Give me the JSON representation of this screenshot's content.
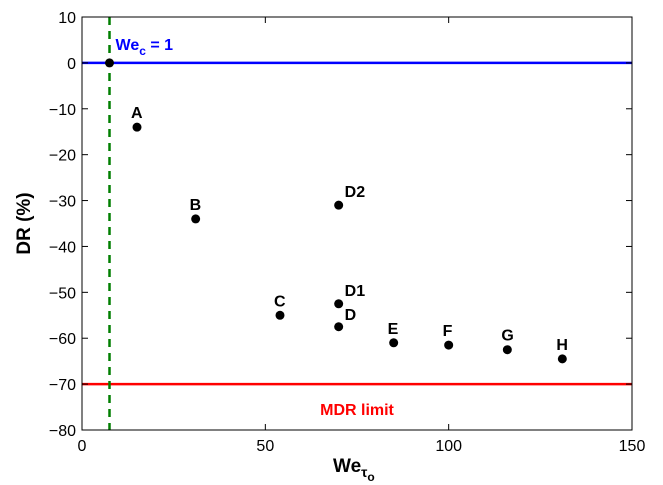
{
  "chart_data": {
    "type": "scatter",
    "title": "",
    "xlabel": {
      "main": "We",
      "sub": "τ",
      "subsub": "o"
    },
    "ylabel": "DR (%)",
    "xlim": [
      0,
      150
    ],
    "ylim": [
      -80,
      10
    ],
    "xticks": [
      0,
      50,
      100,
      150
    ],
    "yticks": [
      -80,
      -70,
      -60,
      -50,
      -40,
      -30,
      -20,
      -10,
      0,
      10
    ],
    "grid": false,
    "points": [
      {
        "label": "A",
        "x": 15,
        "y": -14
      },
      {
        "label": "B",
        "x": 31,
        "y": -34
      },
      {
        "label": "D2",
        "x": 70,
        "y": -31
      },
      {
        "label": "C",
        "x": 54,
        "y": -55
      },
      {
        "label": "D1",
        "x": 70,
        "y": -52.5
      },
      {
        "label": "D",
        "x": 70,
        "y": -57.5
      },
      {
        "label": "E",
        "x": 85,
        "y": -61
      },
      {
        "label": "F",
        "x": 100,
        "y": -61.5
      },
      {
        "label": "G",
        "x": 116,
        "y": -62.5
      },
      {
        "label": "H",
        "x": 131,
        "y": -64.5
      }
    ],
    "origin_point": {
      "x": 7.5,
      "y": 0
    },
    "reference_lines": [
      {
        "kind": "horizontal",
        "value": 0,
        "color": "#0000ff",
        "style": "solid"
      },
      {
        "kind": "horizontal",
        "value": -70,
        "color": "#ff0000",
        "style": "solid"
      },
      {
        "kind": "vertical",
        "value": 7.5,
        "color": "#007f00",
        "style": "dashed"
      }
    ],
    "annotations": {
      "wec": {
        "main": "We",
        "sub": "c",
        "rest": " = 1",
        "color": "#0000ff"
      },
      "mdr": {
        "text": "MDR limit",
        "color": "#ff0000"
      }
    }
  }
}
